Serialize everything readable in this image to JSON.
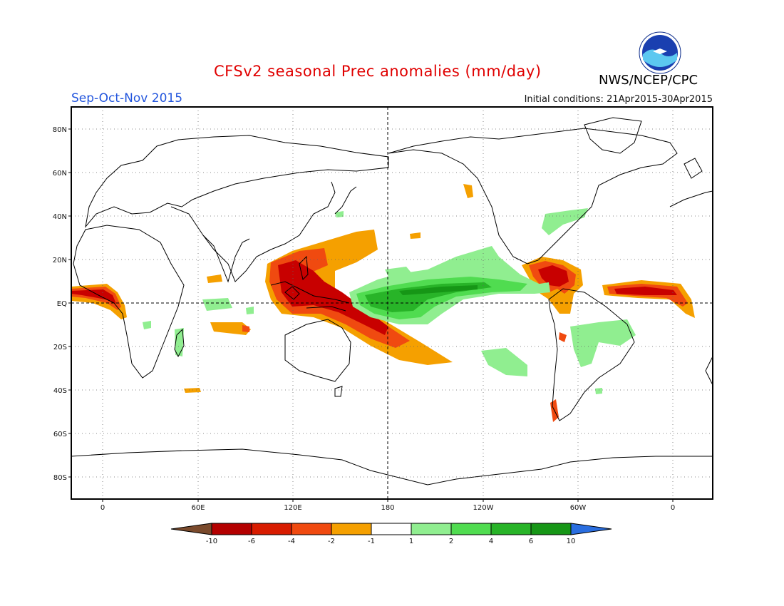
{
  "header": {
    "title": "CFSv2 seasonal Prec anomalies (mm/day)",
    "season": "Sep-Oct-Nov 2015",
    "initial_conditions": "Initial conditions: 21Apr2015-30Apr2015",
    "agency": "NWS/NCEP/CPC",
    "logo_text": "NOAA"
  },
  "map": {
    "projection": "equirectangular",
    "lat_labels": [
      "80N",
      "60N",
      "40N",
      "20N",
      "EQ",
      "20S",
      "40S",
      "60S",
      "80S"
    ],
    "lon_labels": [
      "0",
      "60E",
      "120E",
      "180",
      "120W",
      "60W",
      "0"
    ],
    "grid": "dotted",
    "center_lines": "dashed equator and 180 meridian"
  },
  "legend": {
    "labels": [
      "-10",
      "-6",
      "-4",
      "-2",
      "-1",
      "1",
      "2",
      "4",
      "6",
      "10"
    ],
    "colors": [
      "#7a4a2c",
      "#b40000",
      "#d81c00",
      "#f04a10",
      "#f5a000",
      "#ffffff",
      "#90ee90",
      "#50dc50",
      "#28b428",
      "#169616",
      "#2a6ee0"
    ]
  },
  "colors": {
    "title": "#e00000",
    "season": "#2255dd",
    "dry_strong": "#c80000",
    "dry_moderate": "#f04a10",
    "dry_weak": "#f5a000",
    "wet_weak": "#90ee90",
    "wet_moderate": "#50dc50",
    "wet_strong": "#28b428"
  }
}
